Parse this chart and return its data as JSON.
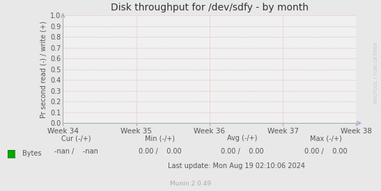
{
  "title": "Disk throughput for /dev/sdfy - by month",
  "ylabel": "Pr second read (-) / write (+)",
  "xlabel_ticks": [
    "Week 34",
    "Week 35",
    "Week 36",
    "Week 37",
    "Week 38"
  ],
  "ylim": [
    0.0,
    1.0
  ],
  "yticks": [
    0.0,
    0.1,
    0.2,
    0.3,
    0.4,
    0.5,
    0.6,
    0.7,
    0.8,
    0.9,
    1.0
  ],
  "background_color": "#e8e8e8",
  "plot_bg_color": "#f0f0f0",
  "grid_color": "#e8a0a0",
  "axis_color": "#aaaaaa",
  "title_color": "#333333",
  "legend_label": "Bytes",
  "legend_color": "#00aa00",
  "footer_line3": "Last update: Mon Aug 19 02:10:06 2024",
  "munin_version": "Munin 2.0.49",
  "watermark": "RRDTOOL / TOBI OETIKER",
  "tick_label_color": "#555555",
  "footer_color": "#555555",
  "arrow_color": "#99aacc",
  "cur_label": "Cur (-/+)",
  "min_label": "Min (-/+)",
  "avg_label": "Avg (-/+)",
  "max_label": "Max (-/+)",
  "cur_val": "-nan /    -nan",
  "min_val": "0.00 /    0.00",
  "avg_val": "0.00 /    0.00",
  "max_val": "0.00 /    0.00"
}
